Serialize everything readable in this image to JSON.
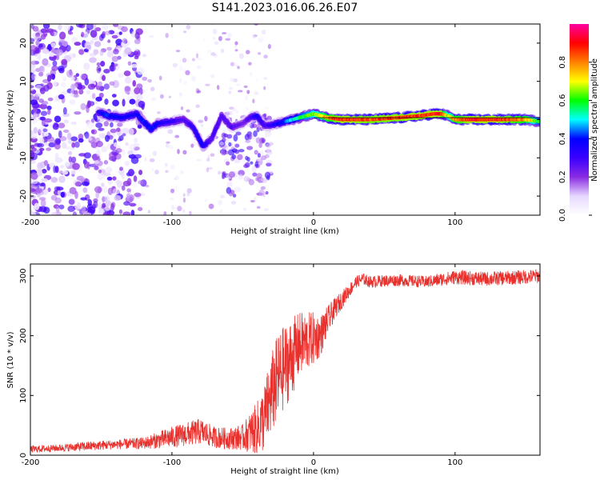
{
  "figure": {
    "title": "S141.2023.016.06.26.E07"
  },
  "chart_data": [
    {
      "type": "heatmap",
      "xlabel": "Height of straight line (km)",
      "ylabel": "Frequency (Hz)",
      "xlim": [
        -200,
        160
      ],
      "ylim": [
        -25,
        25
      ],
      "x_ticks": [
        -200,
        -100,
        0,
        100
      ],
      "y_ticks": [
        -20,
        -10,
        0,
        10,
        20
      ],
      "colorbar": {
        "label": "Normalized spectral amplitude",
        "range": [
          0,
          1
        ],
        "ticks": [
          "0.0",
          "0.2",
          "0.4",
          "0.6",
          "0.8"
        ],
        "tick_values": [
          0.0,
          0.2,
          0.4,
          0.6,
          0.8
        ],
        "colormap": [
          "#ffffff",
          "#e6d8ff",
          "#8a2be2",
          "#3a00ff",
          "#0000ff",
          "#00ffff",
          "#00ff00",
          "#ffff00",
          "#ff8000",
          "#ff0000",
          "#ff00a0"
        ]
      },
      "ridge": {
        "description_free": true,
        "x": [
          -152,
          -145,
          -135,
          -125,
          -115,
          -110,
          -100,
          -92,
          -85,
          -78,
          -72,
          -65,
          -58,
          -50,
          -45,
          -40,
          -35,
          -30,
          -20,
          -10,
          0,
          10,
          20,
          40,
          60,
          75,
          85,
          90,
          95,
          100,
          110,
          130,
          150,
          160
        ],
        "y": [
          2,
          1,
          0.5,
          1.5,
          -2.5,
          -1,
          -0.5,
          0,
          -2,
          -7,
          -5,
          1,
          -2,
          -1,
          0.5,
          1,
          -1.5,
          -1.5,
          -0.5,
          0.5,
          1.5,
          0.5,
          0,
          0,
          0.5,
          1,
          1.5,
          1.5,
          1,
          0,
          0,
          0,
          0,
          -0.5
        ],
        "amplitude": [
          0.35,
          0.45,
          0.4,
          0.4,
          0.45,
          0.4,
          0.35,
          0.3,
          0.35,
          0.4,
          0.3,
          0.3,
          0.3,
          0.25,
          0.3,
          0.4,
          0.3,
          0.35,
          0.45,
          0.6,
          0.7,
          0.85,
          0.95,
          0.92,
          0.93,
          0.95,
          0.95,
          0.95,
          0.7,
          0.85,
          0.95,
          0.95,
          0.85,
          0.6
        ]
      },
      "noise_region": {
        "x_range": [
          -200,
          -120
        ],
        "y_range": [
          -25,
          25
        ]
      }
    },
    {
      "type": "line",
      "xlabel": "Height of straight line (km)",
      "ylabel": "SNR (10 * v/v)",
      "xlim": [
        -200,
        160
      ],
      "ylim": [
        0,
        320
      ],
      "x_ticks": [
        -200,
        -100,
        0,
        100
      ],
      "y_ticks": [
        0,
        100,
        200,
        300
      ],
      "color": "#e8302d",
      "series": [
        {
          "x": [
            -200,
            -180,
            -160,
            -140,
            -120,
            -110,
            -100,
            -90,
            -80,
            -70,
            -60,
            -50,
            -40,
            -35,
            -30,
            -25,
            -20,
            -15,
            -10,
            -5,
            0,
            5,
            10,
            15,
            20,
            25,
            30,
            35,
            40,
            50,
            60,
            80,
            100,
            120,
            140,
            160
          ],
          "values": [
            10,
            12,
            15,
            18,
            20,
            25,
            30,
            35,
            40,
            30,
            28,
            30,
            45,
            60,
            100,
            130,
            150,
            165,
            185,
            190,
            195,
            200,
            225,
            245,
            260,
            275,
            290,
            295,
            290,
            292,
            293,
            290,
            298,
            295,
            297,
            300
          ],
          "noise_amplitude": [
            6,
            6,
            8,
            8,
            10,
            14,
            18,
            20,
            22,
            18,
            18,
            22,
            45,
            55,
            70,
            75,
            70,
            65,
            55,
            50,
            45,
            35,
            25,
            18,
            15,
            12,
            10,
            10,
            10,
            10,
            10,
            10,
            12,
            12,
            12,
            12
          ]
        }
      ]
    }
  ]
}
